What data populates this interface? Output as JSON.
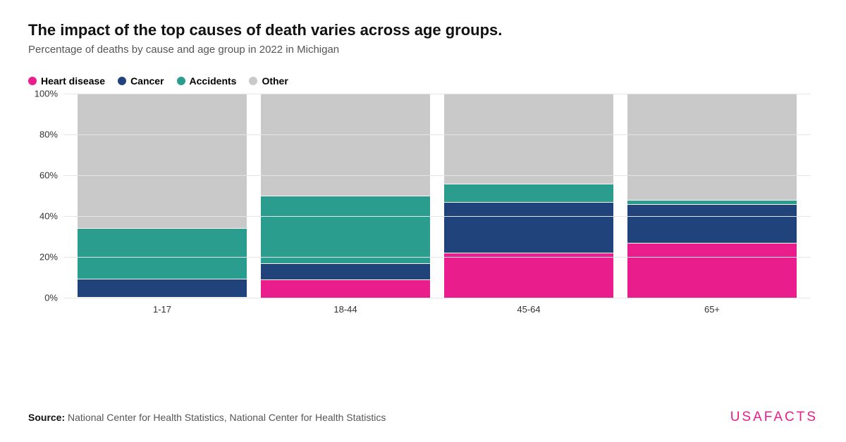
{
  "title": "The impact of the top causes of death varies across age groups.",
  "subtitle": "Percentage of deaths by cause and age group in 2022 in Michigan",
  "legend": [
    {
      "label": "Heart disease",
      "color": "#e91e8c"
    },
    {
      "label": "Cancer",
      "color": "#20437c"
    },
    {
      "label": "Accidents",
      "color": "#2a9d8f"
    },
    {
      "label": "Other",
      "color": "#c9c9c9"
    }
  ],
  "chart": {
    "type": "stacked-bar",
    "ylim": [
      0,
      100
    ],
    "ytick_step": 20,
    "yticks": [
      "0%",
      "20%",
      "40%",
      "60%",
      "80%",
      "100%"
    ],
    "grid_color": "#e5e5e5",
    "background_color": "#ffffff",
    "series_colors": {
      "heart": "#e91e8c",
      "cancer": "#20437c",
      "accidents": "#2a9d8f",
      "other": "#c9c9c9"
    },
    "categories": [
      {
        "label": "1-17",
        "heart": 0,
        "cancer": 9,
        "accidents": 25,
        "other": 66
      },
      {
        "label": "18-44",
        "heart": 9,
        "cancer": 8,
        "accidents": 33,
        "other": 50
      },
      {
        "label": "45-64",
        "heart": 22,
        "cancer": 25,
        "accidents": 9,
        "other": 44
      },
      {
        "label": "65+",
        "heart": 27,
        "cancer": 19,
        "accidents": 2,
        "other": 52
      }
    ]
  },
  "source_prefix": "Source: ",
  "source_text": "National Center for Health Statistics, National Center for Health Statistics",
  "brand_usa": "USA",
  "brand_facts": "FACTS"
}
